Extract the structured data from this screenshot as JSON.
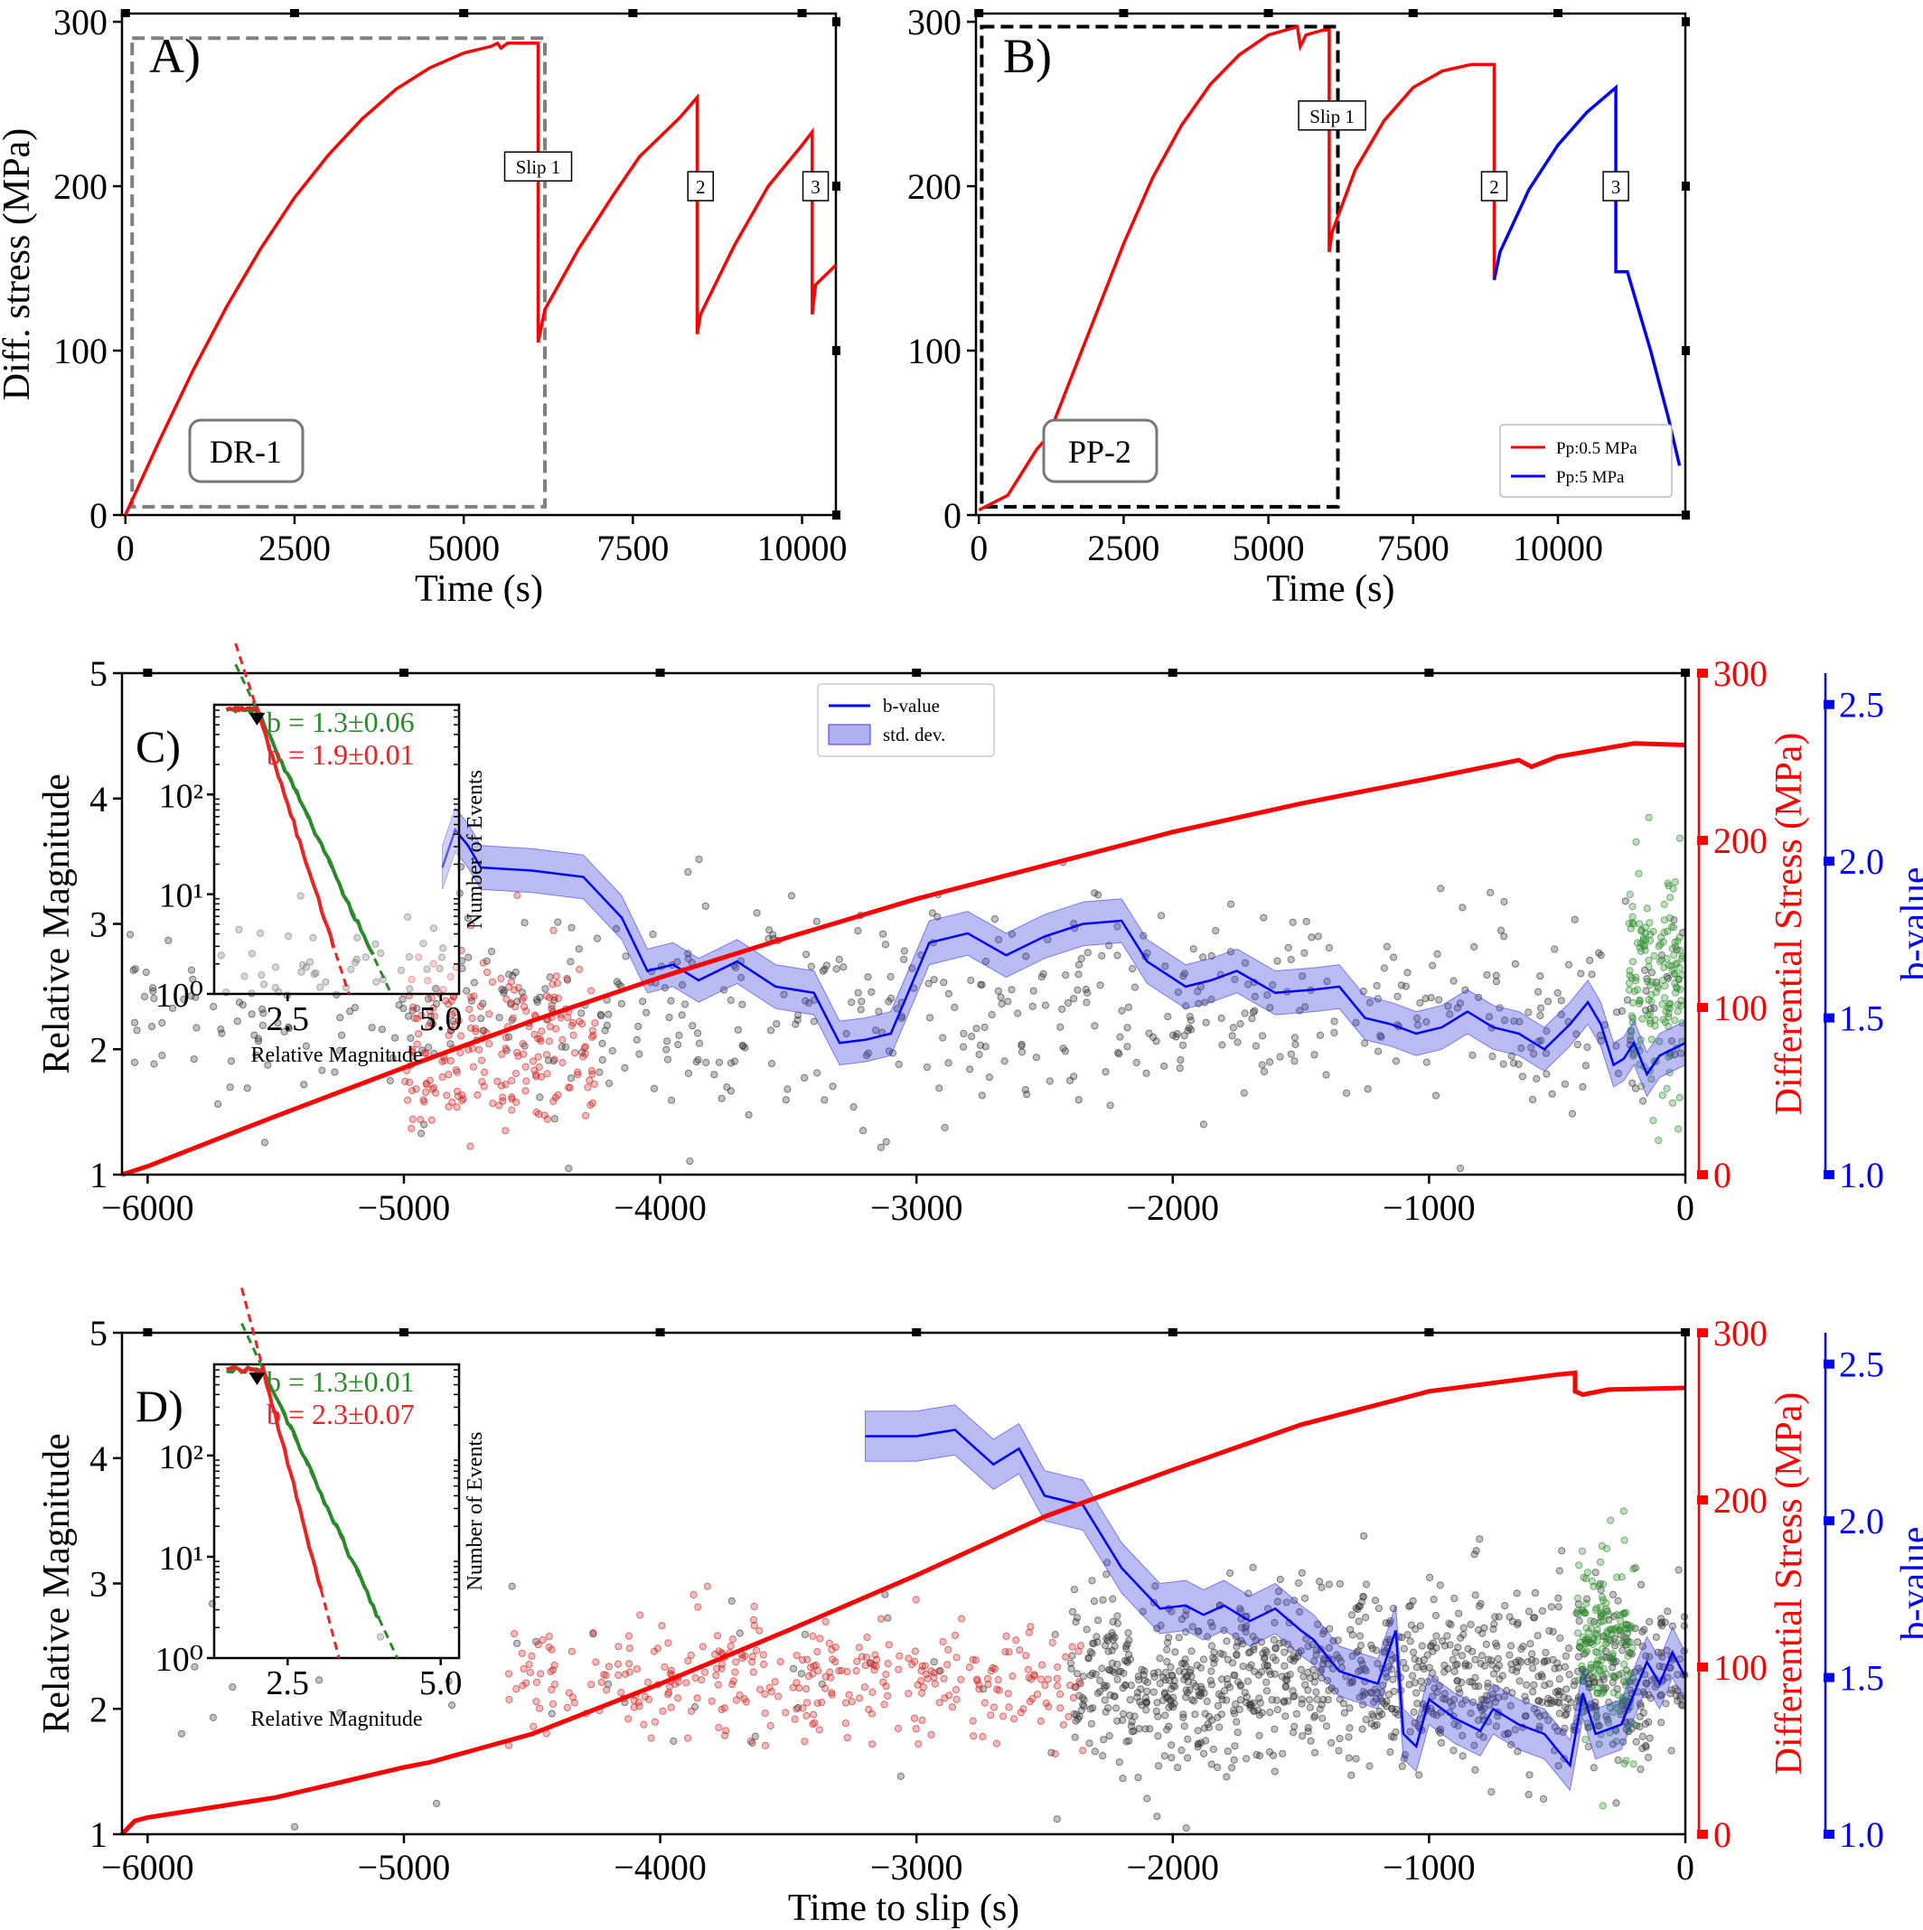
{
  "chart_data": [
    {
      "id": "A",
      "type": "line",
      "panel_label": "A)",
      "sample_label": "DR-1",
      "xlabel": "Time (s)",
      "ylabel": "Diff. stress (MPa)",
      "xlim": [
        -50,
        10500
      ],
      "ylim": [
        0,
        305
      ],
      "xticks": [
        0,
        2500,
        5000,
        7500,
        10000
      ],
      "yticks": [
        0,
        100,
        200,
        300
      ],
      "series": [
        {
          "color": "#ff0000",
          "points": [
            [
              0,
              0
            ],
            [
              500,
              45
            ],
            [
              1000,
              88
            ],
            [
              1500,
              127
            ],
            [
              2000,
              162
            ],
            [
              2500,
              193
            ],
            [
              3000,
              219
            ],
            [
              3500,
              241
            ],
            [
              4000,
              259
            ],
            [
              4500,
              272
            ],
            [
              5000,
              281
            ],
            [
              5400,
              285
            ],
            [
              5500,
              287
            ],
            [
              5550,
              284
            ],
            [
              5650,
              287
            ],
            [
              6100,
              287
            ],
            [
              6100,
              105
            ],
            [
              6200,
              125
            ],
            [
              6700,
              162
            ],
            [
              7200,
              194
            ],
            [
              7600,
              218
            ],
            [
              8000,
              234
            ],
            [
              8200,
              242
            ],
            [
              8450,
              254
            ],
            [
              8450,
              110
            ],
            [
              8500,
              122
            ],
            [
              9000,
              164
            ],
            [
              9500,
              200
            ],
            [
              10000,
              225
            ],
            [
              10150,
              233
            ],
            [
              10150,
              122
            ],
            [
              10200,
              140
            ],
            [
              10500,
              152
            ]
          ]
        }
      ],
      "box": {
        "x": [
          100,
          6200
        ],
        "y": [
          5,
          290
        ],
        "style": "gray-dashed"
      },
      "annotations": [
        {
          "text": "Slip 1",
          "x": 6100,
          "y": 212
        },
        {
          "text": "2",
          "x": 8500,
          "y": 200
        },
        {
          "text": "3",
          "x": 10200,
          "y": 200
        }
      ]
    },
    {
      "id": "B",
      "type": "line",
      "panel_label": "B)",
      "sample_label": "PP-2",
      "xlabel": "Time (s)",
      "ylabel": "",
      "xlim": [
        -50,
        12200
      ],
      "ylim": [
        0,
        305
      ],
      "xticks": [
        0,
        2500,
        5000,
        7500,
        10000
      ],
      "yticks": [
        0,
        100,
        200,
        300
      ],
      "series": [
        {
          "name": "Pp:0.5 MPa",
          "color": "#ff0000",
          "points": [
            [
              0,
              3
            ],
            [
              500,
              12
            ],
            [
              1000,
              40
            ],
            [
              1200,
              48
            ],
            [
              1500,
              75
            ],
            [
              2000,
              120
            ],
            [
              2500,
              165
            ],
            [
              3000,
              205
            ],
            [
              3500,
              237
            ],
            [
              4000,
              262
            ],
            [
              4500,
              280
            ],
            [
              5000,
              292
            ],
            [
              5500,
              297
            ],
            [
              5550,
              285
            ],
            [
              5650,
              292
            ],
            [
              5950,
              295
            ],
            [
              6050,
              295
            ],
            [
              6050,
              160
            ],
            [
              6100,
              172
            ],
            [
              6500,
              210
            ],
            [
              7000,
              240
            ],
            [
              7500,
              260
            ],
            [
              8000,
              270
            ],
            [
              8500,
              274
            ],
            [
              8900,
              274
            ],
            [
              8900,
              143
            ]
          ]
        },
        {
          "name": "Pp:5 MPa",
          "color": "#0000ff",
          "points": [
            [
              8900,
              143
            ],
            [
              9000,
              160
            ],
            [
              9500,
              198
            ],
            [
              10000,
              225
            ],
            [
              10500,
              245
            ],
            [
              11000,
              260
            ],
            [
              11000,
              148
            ],
            [
              11200,
              148
            ],
            [
              11300,
              136
            ],
            [
              11600,
              100
            ],
            [
              11900,
              60
            ],
            [
              12100,
              30
            ]
          ]
        }
      ],
      "box": {
        "x": [
          50,
          6200
        ],
        "y": [
          5,
          297
        ],
        "style": "black-dashed"
      },
      "annotations": [
        {
          "text": "Slip 1",
          "x": 6100,
          "y": 243
        },
        {
          "text": "2",
          "x": 8900,
          "y": 200
        },
        {
          "text": "3",
          "x": 11000,
          "y": 200
        }
      ],
      "legend": {
        "location": "bottom-right",
        "entries": [
          "Pp:0.5 MPa",
          "Pp:5 MPa"
        ]
      }
    },
    {
      "id": "C",
      "type": "scatter",
      "panel_label": "C)",
      "xlabel": "",
      "ylabel": "Relative Magnitude",
      "ylabel_right1": "Differential Stress (MPa)",
      "ylabel_right2": "b-value",
      "xlim": [
        -6100,
        0
      ],
      "ylim": [
        1,
        5
      ],
      "xticks": [
        -6000,
        -5000,
        -4000,
        -3000,
        -2000,
        -1000,
        0
      ],
      "yticks": [
        1,
        2,
        3,
        4,
        5
      ],
      "stress_axis": {
        "lim": [
          0,
          300
        ],
        "ticks": [
          0,
          100,
          200,
          300
        ]
      },
      "b_axis": {
        "lim": [
          1.0,
          2.6
        ],
        "ticks": [
          1.0,
          1.5,
          2.0,
          2.5
        ]
      },
      "stress_curve": [
        [
          -6100,
          0
        ],
        [
          -6000,
          5
        ],
        [
          -5500,
          35
        ],
        [
          -5000,
          64
        ],
        [
          -4500,
          92
        ],
        [
          -4000,
          118
        ],
        [
          -3500,
          142
        ],
        [
          -3000,
          165
        ],
        [
          -2500,
          185
        ],
        [
          -2000,
          205
        ],
        [
          -1500,
          222
        ],
        [
          -1000,
          237
        ],
        [
          -650,
          248
        ],
        [
          -600,
          244
        ],
        [
          -500,
          250
        ],
        [
          -200,
          258
        ],
        [
          0,
          257
        ]
      ],
      "bvalue": [
        [
          -4850,
          1.98
        ],
        [
          -4800,
          2.1
        ],
        [
          -4750,
          2.05
        ],
        [
          -4700,
          1.98
        ],
        [
          -4500,
          1.97
        ],
        [
          -4300,
          1.95
        ],
        [
          -4150,
          1.82
        ],
        [
          -4050,
          1.65
        ],
        [
          -3950,
          1.67
        ],
        [
          -3850,
          1.62
        ],
        [
          -3700,
          1.68
        ],
        [
          -3550,
          1.6
        ],
        [
          -3400,
          1.58
        ],
        [
          -3300,
          1.42
        ],
        [
          -3200,
          1.43
        ],
        [
          -3100,
          1.45
        ],
        [
          -2950,
          1.74
        ],
        [
          -2800,
          1.77
        ],
        [
          -2650,
          1.7
        ],
        [
          -2500,
          1.76
        ],
        [
          -2350,
          1.8
        ],
        [
          -2200,
          1.81
        ],
        [
          -2100,
          1.68
        ],
        [
          -1950,
          1.6
        ],
        [
          -1850,
          1.62
        ],
        [
          -1750,
          1.65
        ],
        [
          -1600,
          1.58
        ],
        [
          -1450,
          1.59
        ],
        [
          -1350,
          1.6
        ],
        [
          -1250,
          1.5
        ],
        [
          -1150,
          1.48
        ],
        [
          -1050,
          1.45
        ],
        [
          -950,
          1.47
        ],
        [
          -850,
          1.52
        ],
        [
          -750,
          1.47
        ],
        [
          -650,
          1.45
        ],
        [
          -550,
          1.4
        ],
        [
          -450,
          1.48
        ],
        [
          -380,
          1.55
        ],
        [
          -330,
          1.48
        ],
        [
          -280,
          1.35
        ],
        [
          -240,
          1.37
        ],
        [
          -200,
          1.42
        ],
        [
          -150,
          1.32
        ],
        [
          -100,
          1.38
        ],
        [
          -50,
          1.4
        ],
        [
          0,
          1.42
        ]
      ],
      "bvalue_std": 0.07,
      "foreshock_clouds": [
        {
          "color": "#333333",
          "x": [
            -6100,
            0
          ],
          "mean": 2.35,
          "spread": 0.55,
          "count": 650
        },
        {
          "color": "#cc2222",
          "x": [
            -5000,
            -4250
          ],
          "mean": 2.05,
          "spread": 0.45,
          "count": 220
        },
        {
          "color": "#2a8a2a",
          "x": [
            -220,
            -10
          ],
          "mean": 2.55,
          "spread": 0.6,
          "count": 160
        }
      ],
      "legend": {
        "location": "upper-center",
        "entries": [
          "b-value",
          "std. dev."
        ]
      },
      "inset": {
        "xlabel": "Relative Magnitude",
        "ylabel": "Number of Events",
        "xlim": [
          1.3,
          5.3
        ],
        "ylim_log10": [
          0,
          2.9
        ],
        "xticks": [
          2.5,
          5.0
        ],
        "ytick_labels": [
          "10⁰",
          "10¹",
          "10²"
        ],
        "fits": [
          {
            "label": "b = 1.3±0.06",
            "color": "#2a8a2a",
            "b": 1.3,
            "mc": 2.0
          },
          {
            "label": "b = 1.9±0.01",
            "color": "#ee2222",
            "b": 1.9,
            "mc": 2.0
          }
        ]
      }
    },
    {
      "id": "D",
      "type": "scatter",
      "panel_label": "D)",
      "xlabel": "Time to slip (s)",
      "ylabel": "Relative Magnitude",
      "ylabel_right1": "Differential Stress (MPa)",
      "ylabel_right2": "b-value",
      "xlim": [
        -6100,
        0
      ],
      "ylim": [
        1,
        5
      ],
      "xticks": [
        -6000,
        -5000,
        -4000,
        -3000,
        -2000,
        -1000,
        0
      ],
      "yticks": [
        1,
        2,
        3,
        4,
        5
      ],
      "stress_axis": {
        "lim": [
          0,
          300
        ],
        "ticks": [
          0,
          100,
          200,
          300
        ]
      },
      "b_axis": {
        "lim": [
          1.0,
          2.6
        ],
        "ticks": [
          1.0,
          1.5,
          2.0,
          2.5
        ]
      },
      "stress_curve": [
        [
          -6100,
          0
        ],
        [
          -6050,
          8
        ],
        [
          -6000,
          10
        ],
        [
          -5500,
          22
        ],
        [
          -5000,
          40
        ],
        [
          -4900,
          43
        ],
        [
          -4500,
          60
        ],
        [
          -4000,
          90
        ],
        [
          -3500,
          122
        ],
        [
          -3000,
          155
        ],
        [
          -2500,
          190
        ],
        [
          -2000,
          218
        ],
        [
          -1500,
          245
        ],
        [
          -1000,
          265
        ],
        [
          -500,
          275
        ],
        [
          -430,
          276
        ],
        [
          -430,
          265
        ],
        [
          -400,
          263
        ],
        [
          -300,
          266
        ],
        [
          0,
          267
        ]
      ],
      "bvalue": [
        [
          -3200,
          2.27
        ],
        [
          -3000,
          2.27
        ],
        [
          -2850,
          2.29
        ],
        [
          -2700,
          2.18
        ],
        [
          -2600,
          2.23
        ],
        [
          -2500,
          2.08
        ],
        [
          -2350,
          2.05
        ],
        [
          -2200,
          1.85
        ],
        [
          -2050,
          1.72
        ],
        [
          -1950,
          1.73
        ],
        [
          -1880,
          1.7
        ],
        [
          -1800,
          1.73
        ],
        [
          -1700,
          1.68
        ],
        [
          -1600,
          1.72
        ],
        [
          -1500,
          1.65
        ],
        [
          -1450,
          1.62
        ],
        [
          -1350,
          1.52
        ],
        [
          -1200,
          1.48
        ],
        [
          -1130,
          1.65
        ],
        [
          -1100,
          1.32
        ],
        [
          -1050,
          1.28
        ],
        [
          -1000,
          1.43
        ],
        [
          -900,
          1.37
        ],
        [
          -800,
          1.33
        ],
        [
          -750,
          1.4
        ],
        [
          -650,
          1.35
        ],
        [
          -550,
          1.32
        ],
        [
          -450,
          1.22
        ],
        [
          -400,
          1.45
        ],
        [
          -350,
          1.32
        ],
        [
          -250,
          1.35
        ],
        [
          -150,
          1.55
        ],
        [
          -100,
          1.48
        ],
        [
          -50,
          1.58
        ],
        [
          0,
          1.5
        ]
      ],
      "bvalue_std": 0.08,
      "foreshock_clouds": [
        {
          "color": "#333333",
          "x": [
            -2400,
            0
          ],
          "mean": 2.25,
          "spread": 0.45,
          "count": 1100
        },
        {
          "color": "#333333",
          "x": [
            -6100,
            -2400
          ],
          "mean": 2.3,
          "spread": 0.6,
          "count": 40
        },
        {
          "color": "#cc2222",
          "x": [
            -4600,
            -2350
          ],
          "mean": 2.25,
          "spread": 0.3,
          "count": 340
        },
        {
          "color": "#2a8a2a",
          "x": [
            -420,
            -200
          ],
          "mean": 2.5,
          "spread": 0.5,
          "count": 180
        }
      ],
      "inset": {
        "xlabel": "Relative Magnitude",
        "ylabel": "Number of Events",
        "xlim": [
          1.3,
          5.3
        ],
        "ylim_log10": [
          0,
          2.9
        ],
        "xticks": [
          2.5,
          5.0
        ],
        "ytick_labels": [
          "10⁰",
          "10¹",
          "10²"
        ],
        "fits": [
          {
            "label": "b = 1.3±0.01",
            "color": "#2a8a2a",
            "b": 1.3,
            "mc": 2.1
          },
          {
            "label": "b = 2.3±0.07",
            "color": "#ee2222",
            "b": 2.3,
            "mc": 2.1
          }
        ]
      }
    }
  ]
}
